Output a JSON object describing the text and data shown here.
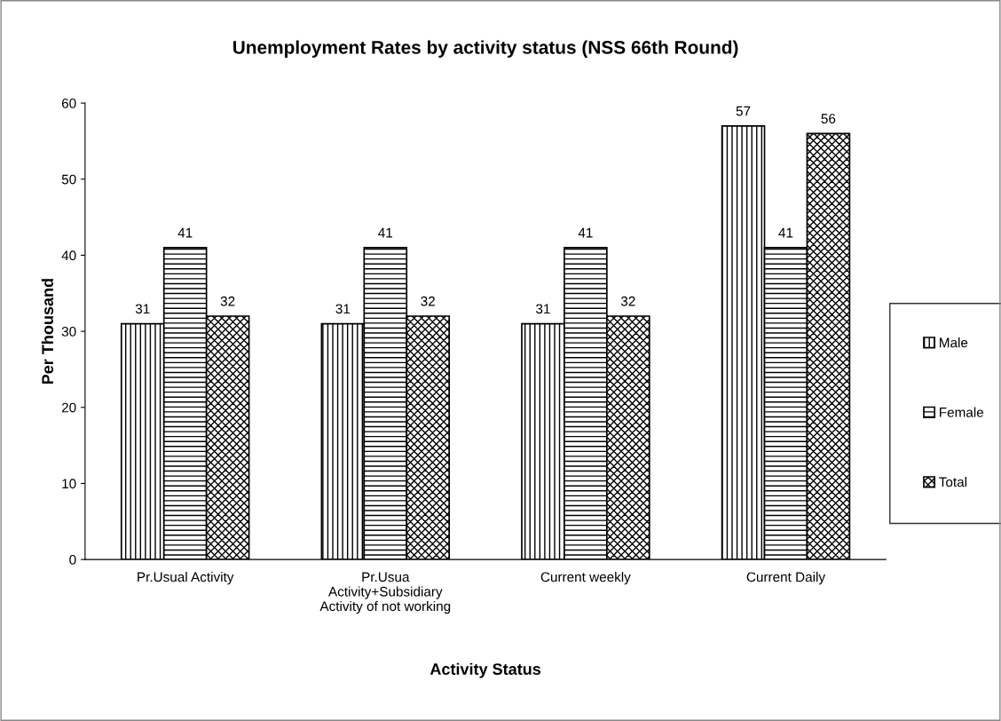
{
  "chart_data": {
    "type": "bar",
    "title": "Unemployment Rates by activity status (NSS 66th Round)",
    "xlabel": "Activity Status",
    "ylabel": "Per Thousand",
    "categories": [
      "Pr.Usual Activity",
      "Pr.Usua\nActivity+Subsidiary\nActivity of not working",
      "Current weekly",
      "Current Daily"
    ],
    "series": [
      {
        "name": "Male",
        "color": "#000000",
        "values": [
          31,
          31,
          31,
          57
        ]
      },
      {
        "name": "Female",
        "color": "#000000",
        "values": [
          41,
          41,
          41,
          41
        ]
      },
      {
        "name": "Total",
        "color": "#000000",
        "values": [
          32,
          32,
          32,
          56
        ]
      }
    ],
    "ylim": [
      0,
      60
    ],
    "yticks": [
      0,
      10,
      20,
      30,
      40,
      50,
      60
    ],
    "grid": false,
    "legend": "right",
    "data_labels": true
  }
}
